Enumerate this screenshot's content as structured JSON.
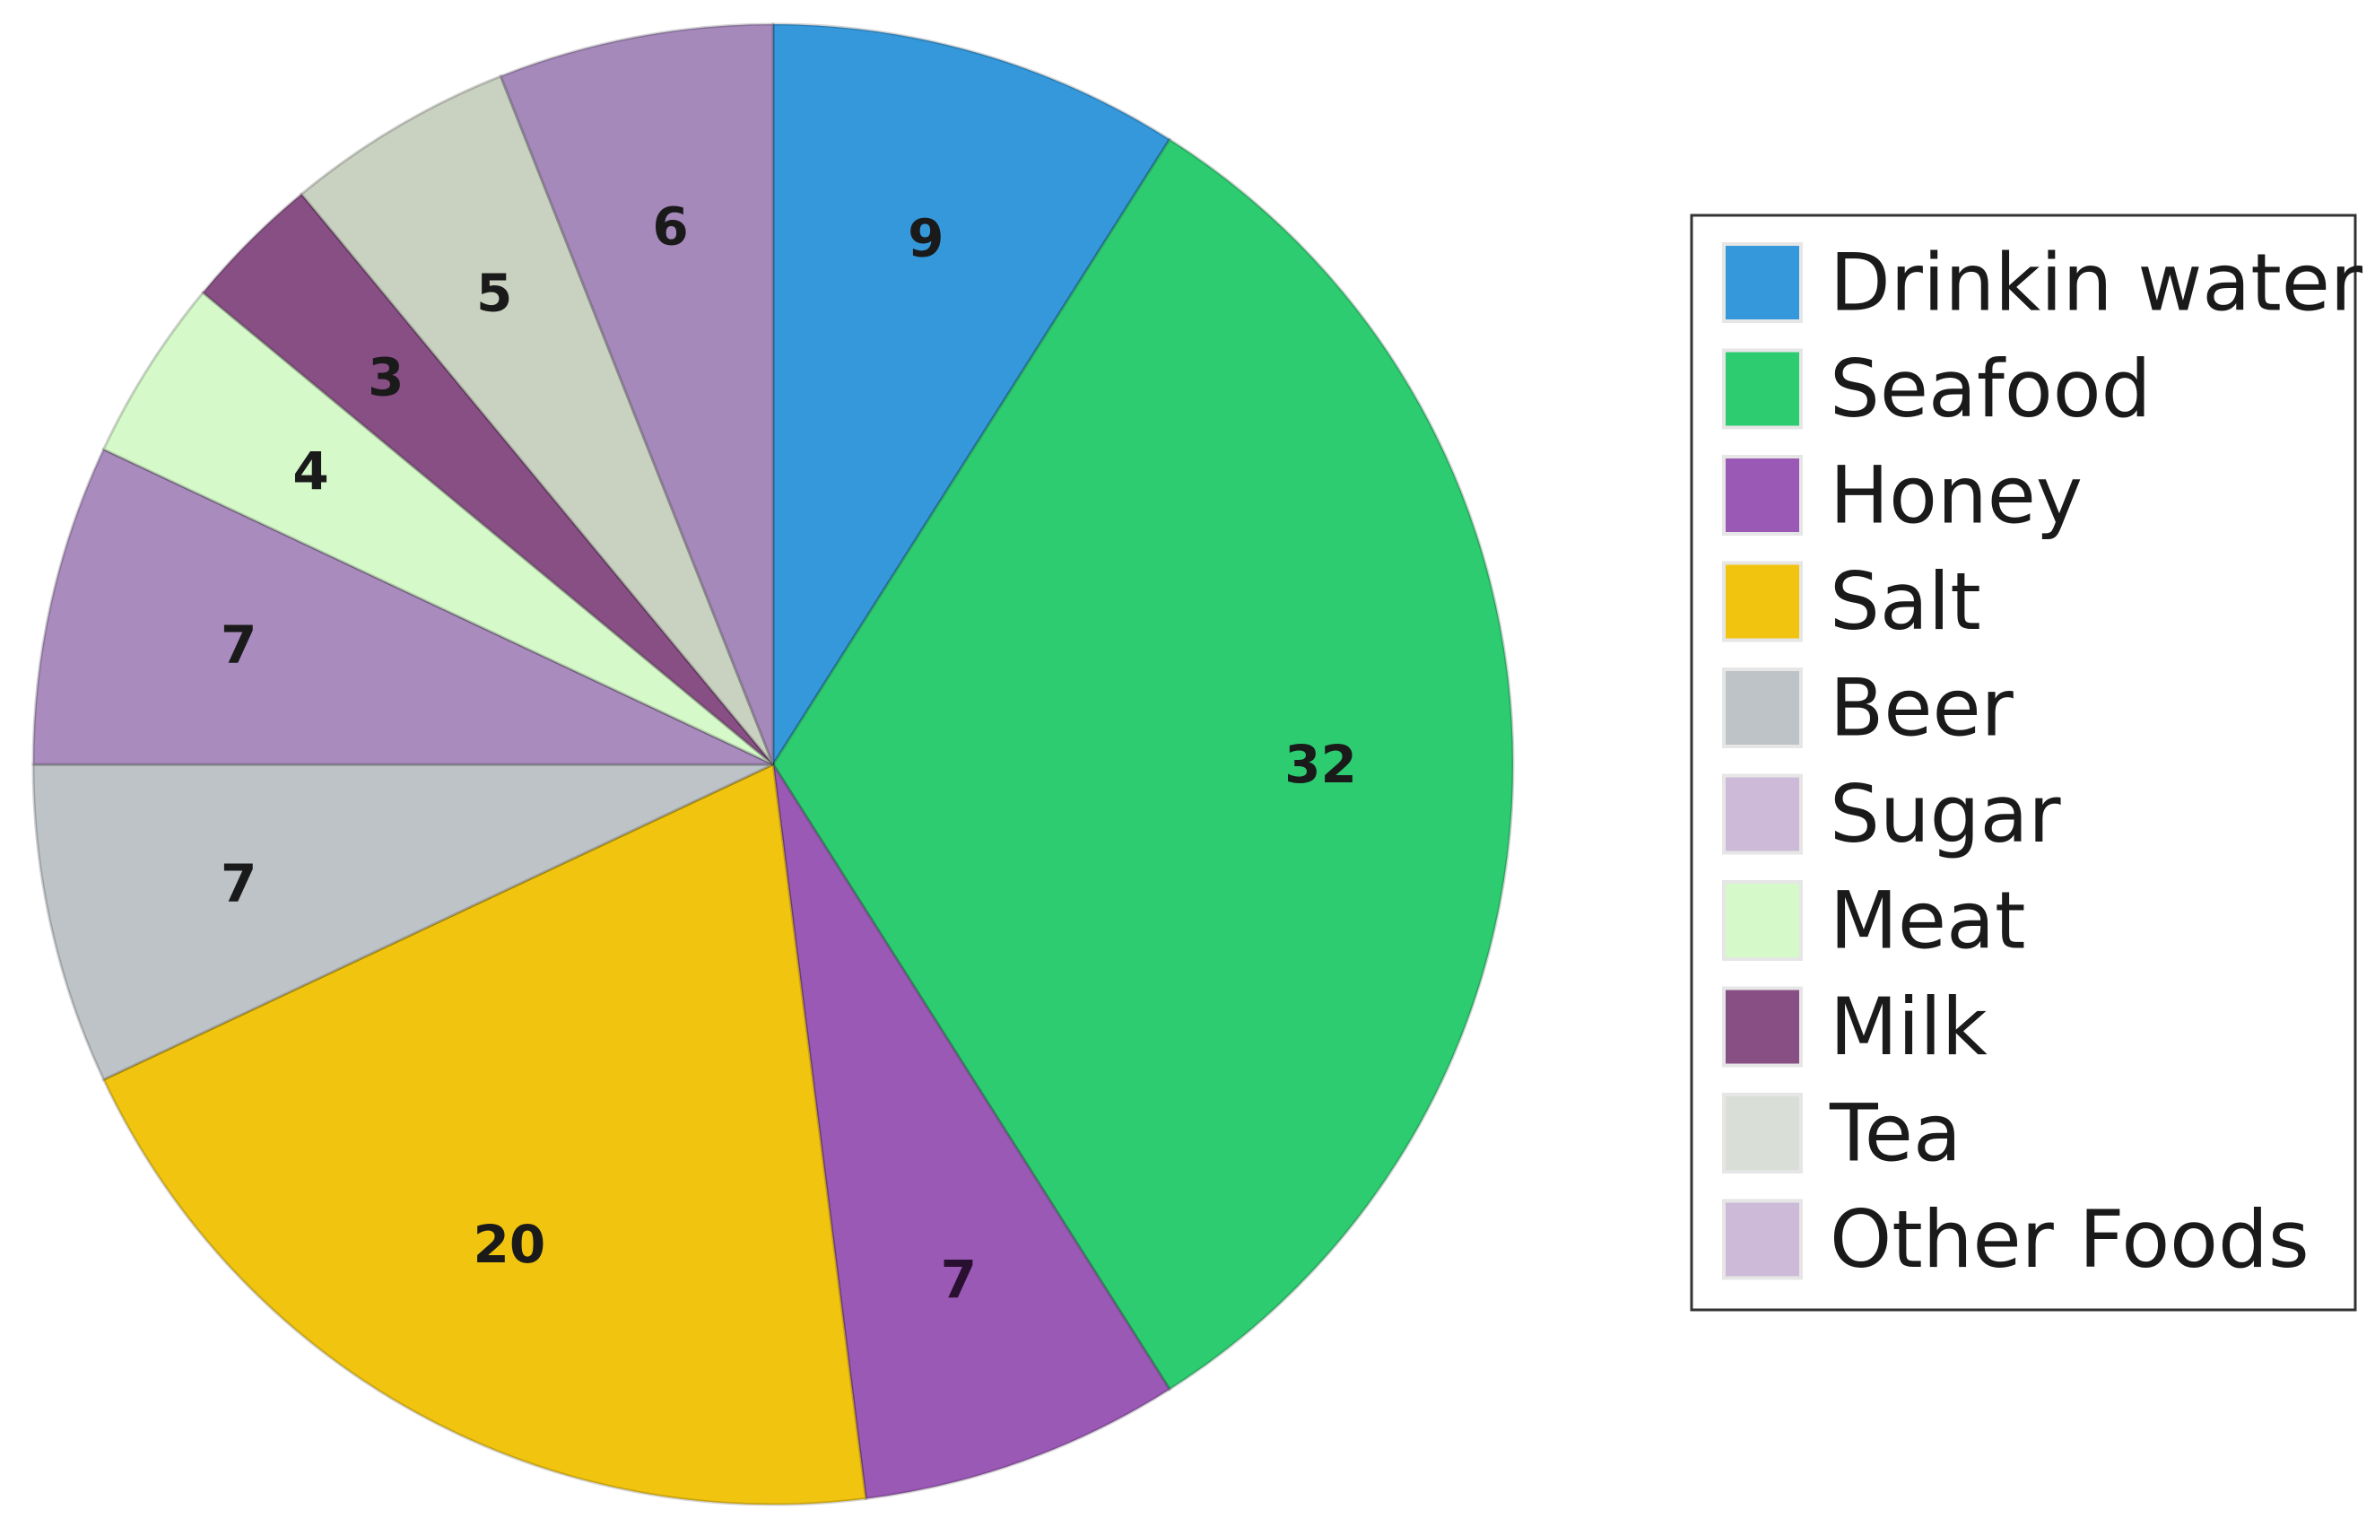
{
  "chart_data": {
    "type": "pie",
    "title": "",
    "start_angle_deg": 0,
    "direction": "clockwise",
    "legend_position": "right",
    "slices": [
      {
        "label": "Drinkin water",
        "value": 9,
        "color": "#3498DB",
        "label_color": "#1a1a1a"
      },
      {
        "label": "Seafood",
        "value": 32,
        "color": "#2ECC71",
        "label_color": "#1a1a1a"
      },
      {
        "label": "Honey",
        "value": 7,
        "color": "#9B59B6",
        "label_color": "#2a1030"
      },
      {
        "label": "Salt",
        "value": 20,
        "color": "#F1C40F",
        "label_color": "#1a1a1a"
      },
      {
        "label": "Beer",
        "value": 7,
        "color": "#BDC3C7",
        "label_color": "#1a1a1a"
      },
      {
        "label": "Sugar",
        "value": 7,
        "color": "#A98BBE",
        "label_color": "#1a1a1a"
      },
      {
        "label": "Meat",
        "value": 4,
        "color": "#D5F9C9",
        "label_color": "#1a1a1a"
      },
      {
        "label": "Milk",
        "value": 3,
        "color": "#884F85",
        "label_color": "#1a1a1a"
      },
      {
        "label": "Tea",
        "value": 5,
        "color": "#C9D1C0",
        "label_color": "#1a1a1a"
      },
      {
        "label": "Other Foods",
        "value": 6,
        "color": "#A589BB",
        "label_color": "#1a1a1a"
      }
    ],
    "legend": [
      {
        "label": "Drinkin water",
        "color": "#3498DB"
      },
      {
        "label": "Seafood",
        "color": "#2ECC71"
      },
      {
        "label": "Honey",
        "color": "#9B59B6"
      },
      {
        "label": "Salt",
        "color": "#F1C40F"
      },
      {
        "label": "Beer",
        "color": "#BDC3C7"
      },
      {
        "label": "Sugar",
        "color": "#CDB9D8"
      },
      {
        "label": "Meat",
        "color": "#D5F9C9"
      },
      {
        "label": "Milk",
        "color": "#884F85"
      },
      {
        "label": "Tea",
        "color": "#D9DED6"
      },
      {
        "label": "Other Foods",
        "color": "#CDB9D8"
      }
    ]
  }
}
